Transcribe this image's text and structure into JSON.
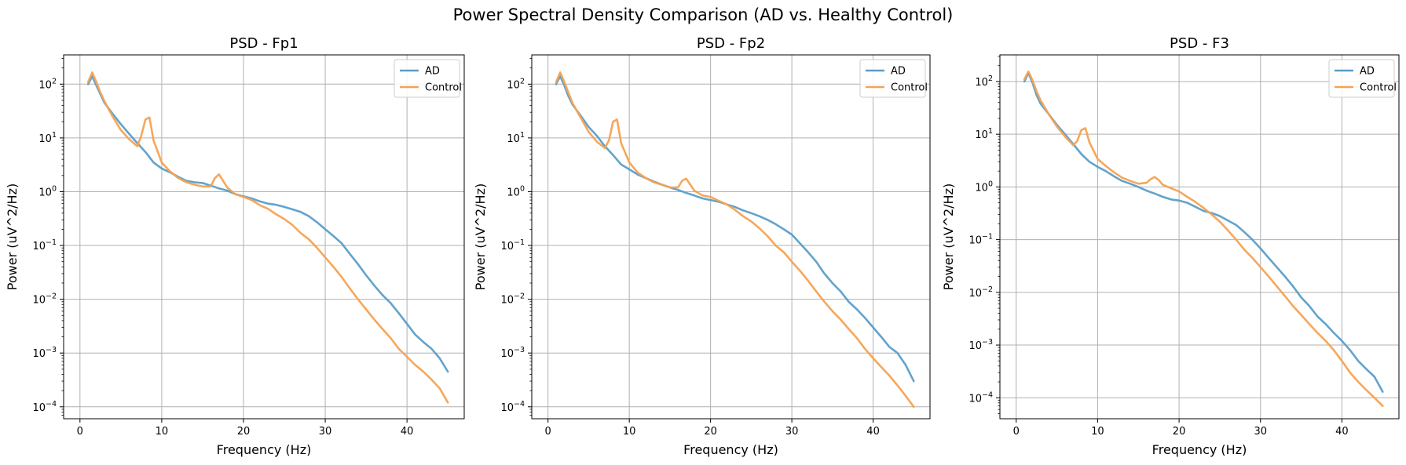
{
  "figure": {
    "suptitle": "Power Spectral Density Comparison (AD vs. Healthy Control)"
  },
  "chart_data": [
    {
      "type": "line",
      "title": "PSD - Fp1",
      "xlabel": "Frequency (Hz)",
      "ylabel": "Power (uV^2/Hz)",
      "yscale": "log",
      "xlim": [
        -2,
        47
      ],
      "ylim": [
        6e-05,
        350
      ],
      "xticks": [
        0,
        10,
        20,
        30,
        40
      ],
      "yticks": [
        0.0001,
        0.001,
        0.01,
        0.1,
        1,
        10,
        100
      ],
      "ytick_labels": [
        [
          "10",
          "−4"
        ],
        [
          "10",
          "−3"
        ],
        [
          "10",
          "−2"
        ],
        [
          "10",
          "−1"
        ],
        [
          "10",
          "0"
        ],
        [
          "10",
          "1"
        ],
        [
          "10",
          "2"
        ]
      ],
      "grid": true,
      "legend_position": "upper-right",
      "series": [
        {
          "name": "AD",
          "color": "#5b9ec8",
          "x": [
            1,
            1.5,
            2,
            2.5,
            3,
            4,
            5,
            6,
            7,
            8,
            9,
            10,
            11,
            12,
            13,
            14,
            15,
            16,
            17,
            18,
            19,
            20,
            21,
            22,
            23,
            24,
            25,
            26,
            27,
            28,
            29,
            30,
            31,
            32,
            33,
            34,
            35,
            36,
            37,
            38,
            39,
            40,
            41,
            42,
            43,
            44,
            45
          ],
          "y": [
            100,
            140,
            95,
            65,
            45,
            28,
            18,
            12,
            8,
            5.5,
            3.5,
            2.7,
            2.3,
            1.9,
            1.6,
            1.5,
            1.45,
            1.3,
            1.15,
            1.05,
            0.9,
            0.82,
            0.75,
            0.66,
            0.6,
            0.57,
            0.52,
            0.47,
            0.42,
            0.35,
            0.27,
            0.2,
            0.15,
            0.11,
            0.07,
            0.045,
            0.028,
            0.018,
            0.012,
            0.0085,
            0.0055,
            0.0035,
            0.0022,
            0.0016,
            0.0012,
            0.0008,
            0.00045
          ]
        },
        {
          "name": "Control",
          "color": "#f5a252",
          "x": [
            1,
            1.5,
            2,
            2.5,
            3,
            4,
            5,
            6,
            7,
            7.5,
            8,
            8.5,
            9,
            10,
            11,
            12,
            13,
            14,
            15,
            16,
            16.5,
            17,
            17.5,
            18,
            19,
            20,
            21,
            22,
            23,
            24,
            25,
            26,
            27,
            28,
            29,
            30,
            31,
            32,
            33,
            34,
            35,
            36,
            37,
            38,
            39,
            40,
            41,
            42,
            43,
            44,
            45
          ],
          "y": [
            110,
            165,
            110,
            70,
            48,
            25,
            14,
            9.5,
            7,
            11,
            22,
            24,
            9,
            3.5,
            2.4,
            1.8,
            1.5,
            1.35,
            1.25,
            1.25,
            1.8,
            2.1,
            1.6,
            1.2,
            0.9,
            0.8,
            0.7,
            0.56,
            0.48,
            0.38,
            0.31,
            0.24,
            0.17,
            0.13,
            0.09,
            0.06,
            0.04,
            0.026,
            0.016,
            0.01,
            0.0065,
            0.0042,
            0.0028,
            0.0019,
            0.0012,
            0.00085,
            0.0006,
            0.00045,
            0.00032,
            0.00022,
            0.00012
          ]
        }
      ]
    },
    {
      "type": "line",
      "title": "PSD - Fp2",
      "xlabel": "Frequency (Hz)",
      "ylabel": "Power (uV^2/Hz)",
      "yscale": "log",
      "xlim": [
        -2,
        47
      ],
      "ylim": [
        6e-05,
        350
      ],
      "xticks": [
        0,
        10,
        20,
        30,
        40
      ],
      "yticks": [
        0.0001,
        0.001,
        0.01,
        0.1,
        1,
        10,
        100
      ],
      "ytick_labels": [
        [
          "10",
          "−4"
        ],
        [
          "10",
          "−3"
        ],
        [
          "10",
          "−2"
        ],
        [
          "10",
          "−1"
        ],
        [
          "10",
          "0"
        ],
        [
          "10",
          "1"
        ],
        [
          "10",
          "2"
        ]
      ],
      "grid": true,
      "legend_position": "upper-right",
      "series": [
        {
          "name": "AD",
          "color": "#5b9ec8",
          "x": [
            1,
            1.5,
            2,
            2.5,
            3,
            4,
            5,
            6,
            7,
            8,
            9,
            10,
            11,
            12,
            13,
            14,
            15,
            16,
            17,
            18,
            19,
            20,
            21,
            22,
            23,
            24,
            25,
            26,
            27,
            28,
            29,
            30,
            31,
            32,
            33,
            34,
            35,
            36,
            37,
            38,
            39,
            40,
            41,
            42,
            43,
            44,
            45
          ],
          "y": [
            100,
            140,
            95,
            60,
            42,
            26,
            16,
            11,
            7,
            4.8,
            3.2,
            2.6,
            2.1,
            1.8,
            1.55,
            1.35,
            1.2,
            1.08,
            0.95,
            0.85,
            0.75,
            0.7,
            0.65,
            0.58,
            0.52,
            0.45,
            0.4,
            0.35,
            0.3,
            0.25,
            0.2,
            0.16,
            0.11,
            0.075,
            0.05,
            0.03,
            0.02,
            0.014,
            0.009,
            0.0065,
            0.0045,
            0.003,
            0.002,
            0.0013,
            0.001,
            0.0006,
            0.0003
          ]
        },
        {
          "name": "Control",
          "color": "#f5a252",
          "x": [
            1,
            1.5,
            2,
            2.5,
            3,
            4,
            5,
            6,
            7,
            7.5,
            8,
            8.5,
            9,
            10,
            11,
            12,
            13,
            14,
            15,
            16,
            16.5,
            17,
            17.5,
            18,
            19,
            20,
            21,
            22,
            23,
            24,
            25,
            26,
            27,
            28,
            29,
            30,
            31,
            32,
            33,
            34,
            35,
            36,
            37,
            38,
            39,
            40,
            41,
            42,
            43,
            44,
            45
          ],
          "y": [
            110,
            165,
            110,
            70,
            45,
            24,
            13,
            8.5,
            6.5,
            9,
            20,
            22,
            8,
            3.5,
            2.3,
            1.8,
            1.5,
            1.35,
            1.2,
            1.2,
            1.6,
            1.75,
            1.35,
            1.05,
            0.85,
            0.8,
            0.68,
            0.58,
            0.46,
            0.35,
            0.28,
            0.21,
            0.15,
            0.1,
            0.075,
            0.05,
            0.034,
            0.022,
            0.014,
            0.009,
            0.006,
            0.0042,
            0.0028,
            0.0019,
            0.0012,
            0.0008,
            0.00055,
            0.00038,
            0.00025,
            0.00016,
            0.0001
          ]
        }
      ]
    },
    {
      "type": "line",
      "title": "PSD - F3",
      "xlabel": "Frequency (Hz)",
      "ylabel": "Power (uV^2/Hz)",
      "yscale": "log",
      "xlim": [
        -2,
        47
      ],
      "ylim": [
        4e-05,
        320
      ],
      "xticks": [
        0,
        10,
        20,
        30,
        40
      ],
      "yticks": [
        0.0001,
        0.001,
        0.01,
        0.1,
        1,
        10,
        100
      ],
      "ytick_labels": [
        [
          "10",
          "−4"
        ],
        [
          "10",
          "−3"
        ],
        [
          "10",
          "−2"
        ],
        [
          "10",
          "−1"
        ],
        [
          "10",
          "0"
        ],
        [
          "10",
          "1"
        ],
        [
          "10",
          "2"
        ]
      ],
      "grid": true,
      "legend_position": "upper-right",
      "series": [
        {
          "name": "AD",
          "color": "#5b9ec8",
          "x": [
            1,
            1.5,
            2,
            2.5,
            3,
            4,
            5,
            6,
            7,
            8,
            9,
            10,
            11,
            12,
            13,
            14,
            15,
            16,
            17,
            18,
            19,
            20,
            21,
            22,
            23,
            24,
            25,
            26,
            27,
            28,
            29,
            30,
            31,
            32,
            33,
            34,
            35,
            36,
            37,
            38,
            39,
            40,
            41,
            42,
            43,
            44,
            45
          ],
          "y": [
            100,
            145,
            95,
            55,
            38,
            24,
            15,
            10,
            6.5,
            4.2,
            3,
            2.4,
            2,
            1.6,
            1.3,
            1.15,
            1,
            0.85,
            0.75,
            0.65,
            0.58,
            0.55,
            0.5,
            0.42,
            0.35,
            0.32,
            0.28,
            0.23,
            0.19,
            0.14,
            0.1,
            0.068,
            0.045,
            0.03,
            0.02,
            0.013,
            0.008,
            0.0055,
            0.0035,
            0.0025,
            0.0017,
            0.0012,
            0.0008,
            0.0005,
            0.00035,
            0.00025,
            0.00013
          ]
        },
        {
          "name": "Control",
          "color": "#f5a252",
          "x": [
            1,
            1.5,
            2,
            2.5,
            3,
            4,
            5,
            6,
            7,
            7.5,
            8,
            8.5,
            9,
            10,
            11,
            12,
            13,
            14,
            15,
            16,
            16.5,
            17,
            17.5,
            18,
            19,
            20,
            21,
            22,
            23,
            24,
            25,
            26,
            27,
            28,
            29,
            30,
            31,
            32,
            33,
            34,
            35,
            36,
            37,
            38,
            39,
            40,
            41,
            42,
            43,
            44,
            45
          ],
          "y": [
            110,
            155,
            105,
            65,
            44,
            24,
            14,
            9,
            6.2,
            7.5,
            12,
            13,
            7,
            3.4,
            2.5,
            1.9,
            1.5,
            1.3,
            1.15,
            1.2,
            1.4,
            1.55,
            1.35,
            1.1,
            0.95,
            0.82,
            0.65,
            0.52,
            0.4,
            0.3,
            0.22,
            0.15,
            0.1,
            0.065,
            0.045,
            0.03,
            0.02,
            0.013,
            0.0085,
            0.0055,
            0.0037,
            0.0025,
            0.0017,
            0.0012,
            0.0008,
            0.0005,
            0.0003,
            0.0002,
            0.00014,
            0.0001,
            7e-05
          ]
        }
      ]
    }
  ]
}
